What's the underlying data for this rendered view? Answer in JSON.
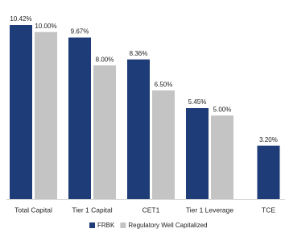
{
  "chart_data": {
    "type": "bar",
    "categories": [
      "Total Capital",
      "Tier 1 Capital",
      "CET1",
      "Tier 1 Leverage",
      "TCE"
    ],
    "series": [
      {
        "name": "FRBK",
        "color": "#1e3c78",
        "values": [
          10.42,
          9.67,
          8.36,
          5.45,
          3.2
        ],
        "value_labels": [
          "10.42%",
          "9.67%",
          "8.36%",
          "5.45%",
          "3.20%"
        ]
      },
      {
        "name": "Regulatory Well Capitalized",
        "color": "#c4c4c4",
        "values": [
          10.0,
          8.0,
          6.5,
          5.0,
          null
        ],
        "value_labels": [
          "10.00%",
          "8.00%",
          "6.50%",
          "5.00%",
          null
        ]
      }
    ]
  }
}
